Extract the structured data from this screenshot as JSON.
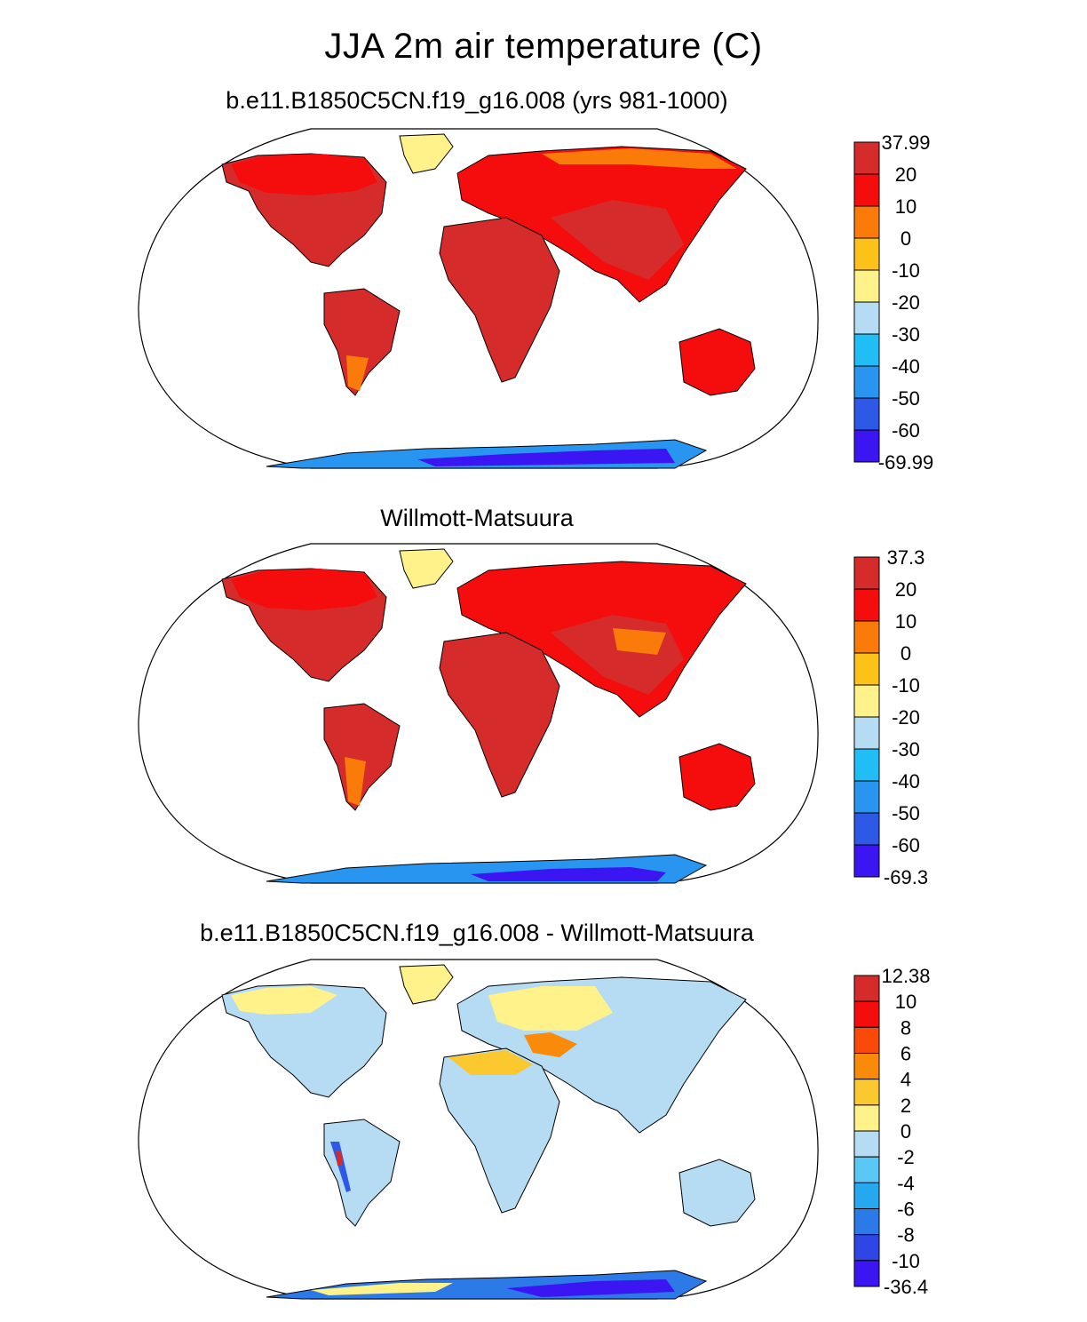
{
  "figure": {
    "title": "JJA 2m air temperature (C)"
  },
  "panels": [
    {
      "title": "b.e11.B1850C5CN.f19_g16.008 (yrs 981-1000)",
      "colorbar": {
        "labels": [
          "37.99",
          "20",
          "10",
          "0",
          "-10",
          "-20",
          "-30",
          "-40",
          "-50",
          "-60",
          "-69.99"
        ],
        "colors": [
          "#d62b2b",
          "#f50d0d",
          "#fa7a0a",
          "#fcc21a",
          "#fff28a",
          "#b5dcf2",
          "#20bef5",
          "#2896f0",
          "#2e58e6",
          "#3b16f2"
        ]
      }
    },
    {
      "title": "Willmott-Matsuura",
      "colorbar": {
        "labels": [
          "37.3",
          "20",
          "10",
          "0",
          "-10",
          "-20",
          "-30",
          "-40",
          "-50",
          "-60",
          "-69.3"
        ],
        "colors": [
          "#d62b2b",
          "#f50d0d",
          "#fa7a0a",
          "#fcc21a",
          "#fff28a",
          "#b5dcf2",
          "#20bef5",
          "#2896f0",
          "#2e58e6",
          "#3b16f2"
        ]
      }
    },
    {
      "title": "b.e11.B1850C5CN.f19_g16.008 - Willmott-Matsuura",
      "colorbar": {
        "labels": [
          "12.38",
          "10",
          "8",
          "6",
          "4",
          "2",
          "0",
          "-2",
          "-4",
          "-6",
          "-8",
          "-10",
          "-36.4"
        ],
        "colors": [
          "#d62b2b",
          "#f50d0d",
          "#fa4a0a",
          "#fa8a0a",
          "#fcc830",
          "#fff28a",
          "#b5dcf2",
          "#5ac8f5",
          "#25a8f0",
          "#2c7ae8",
          "#2e46e6",
          "#3b16f2"
        ]
      }
    }
  ]
}
